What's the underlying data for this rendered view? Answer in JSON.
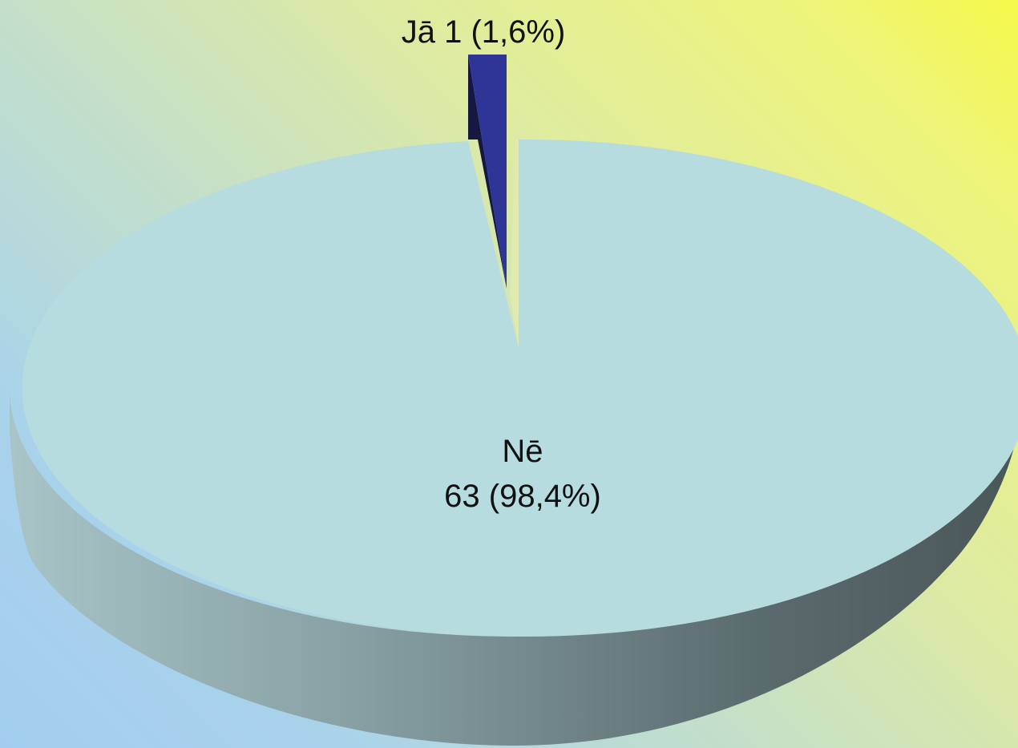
{
  "chart_data": {
    "type": "pie",
    "title": "",
    "slices": [
      {
        "name": "Jā",
        "value": 1,
        "percent_label": "1 (1,6%)",
        "color": "#2e3596",
        "exploded": true
      },
      {
        "name": "Nē",
        "value": 63,
        "percent_label": "63 (98,4%)",
        "color": "#b7dcdf",
        "exploded": false
      }
    ],
    "legend": "none",
    "style": "3d"
  }
}
